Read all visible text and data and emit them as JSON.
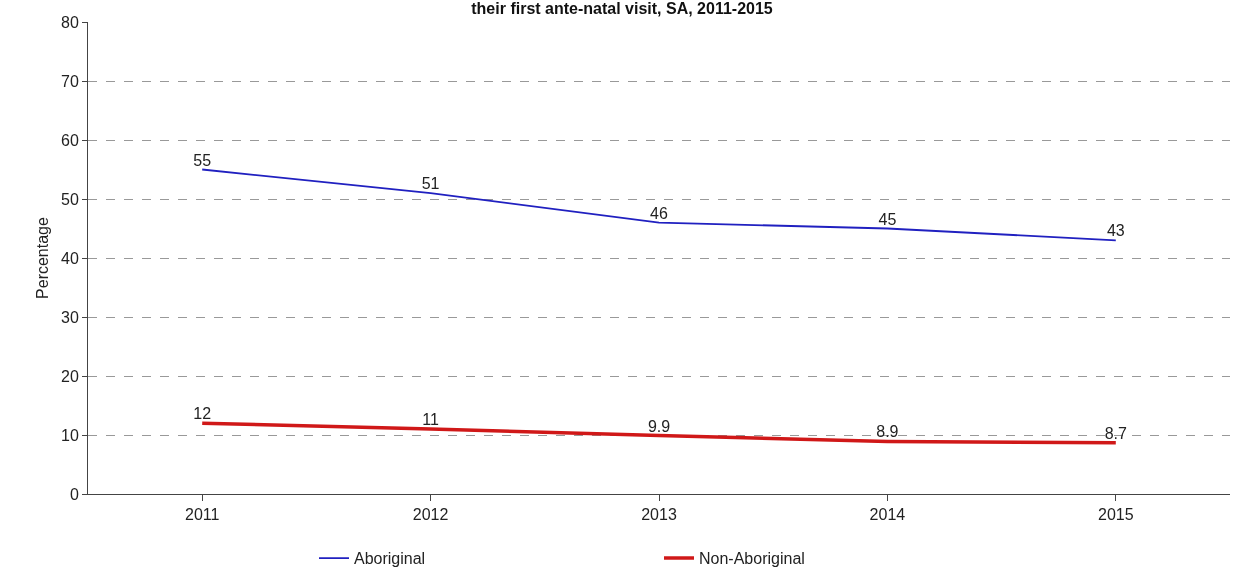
{
  "chart_data": {
    "type": "line",
    "title": "their first ante-natal visit, SA, 2011-2015",
    "ylabel": "Percentage",
    "categories": [
      "2011",
      "2012",
      "2013",
      "2014",
      "2015"
    ],
    "series": [
      {
        "name": "Aboriginal",
        "color": "#2020c0",
        "values": [
          55,
          51,
          46,
          45,
          43
        ]
      },
      {
        "name": "Non-Aboriginal",
        "color": "#d01818",
        "values": [
          12,
          11,
          9.9,
          8.9,
          8.7
        ]
      }
    ],
    "ylim": [
      0,
      80
    ],
    "yticks": [
      0,
      10,
      20,
      30,
      40,
      50,
      60,
      70,
      80
    ],
    "grid": "y",
    "legend": "bottom",
    "marker": "none",
    "line_style": "solid",
    "data_labels": true
  }
}
